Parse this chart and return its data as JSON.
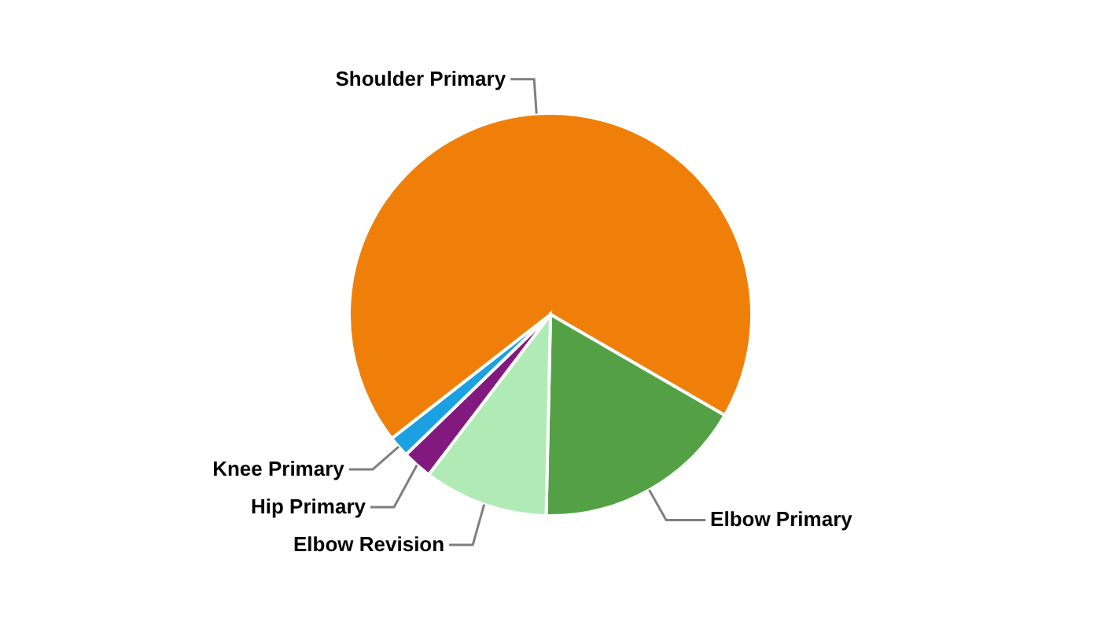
{
  "chart_data": {
    "type": "pie",
    "categories": [
      "Shoulder Primary",
      "Elbow Primary",
      "Elbow Revision",
      "Hip Primary",
      "Knee Primary"
    ],
    "values": [
      68.9,
      17,
      10,
      2.4,
      1.7
    ],
    "colors": [
      "#f07f09",
      "#54a145",
      "#b0ebb5",
      "#82197f",
      "#1ba1e2"
    ]
  }
}
